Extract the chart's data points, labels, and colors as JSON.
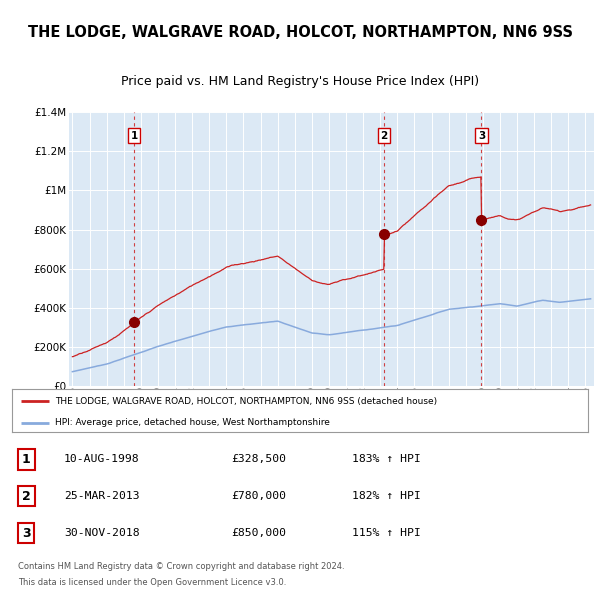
{
  "title": "THE LODGE, WALGRAVE ROAD, HOLCOT, NORTHAMPTON, NN6 9SS",
  "subtitle": "Price paid vs. HM Land Registry's House Price Index (HPI)",
  "legend_line1": "THE LODGE, WALGRAVE ROAD, HOLCOT, NORTHAMPTON, NN6 9SS (detached house)",
  "legend_line2": "HPI: Average price, detached house, West Northamptonshire",
  "footer1": "Contains HM Land Registry data © Crown copyright and database right 2024.",
  "footer2": "This data is licensed under the Open Government Licence v3.0.",
  "sale_labels": [
    "1",
    "2",
    "3"
  ],
  "sale_dates_str": [
    "10-AUG-1998",
    "25-MAR-2013",
    "30-NOV-2018"
  ],
  "sale_prices_str": [
    "£328,500",
    "£780,000",
    "£850,000"
  ],
  "sale_hpi_str": [
    "183% ↑ HPI",
    "182% ↑ HPI",
    "115% ↑ HPI"
  ],
  "sale_years": [
    1998.61,
    2013.23,
    2018.92
  ],
  "sale_prices": [
    328500,
    780000,
    850000
  ],
  "ylim": [
    0,
    1400000
  ],
  "xlim_start": 1994.8,
  "xlim_end": 2025.5,
  "bg_color": "#dce9f5",
  "red_line_color": "#cc2222",
  "blue_line_color": "#88aadd",
  "dashed_line_color": "#cc2222",
  "grid_color": "#ffffff",
  "marker_color": "#880000",
  "title_fontsize": 10.5,
  "subtitle_fontsize": 9.0,
  "yticks": [
    0,
    200000,
    400000,
    600000,
    800000,
    1000000,
    1200000,
    1400000
  ],
  "ytick_labels": [
    "£0",
    "£200K",
    "£400K",
    "£600K",
    "£800K",
    "£1M",
    "£1.2M",
    "£1.4M"
  ]
}
